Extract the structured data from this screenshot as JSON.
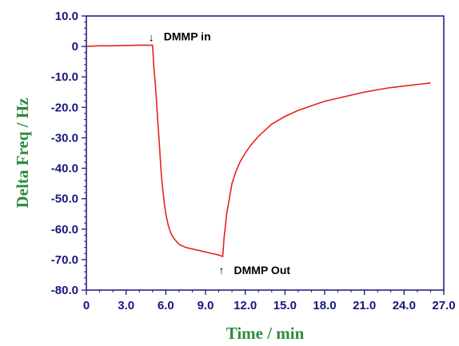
{
  "chart_data": {
    "type": "line",
    "title": "",
    "xlabel": "Time / min",
    "ylabel": "Delta Freq / Hz",
    "xlim": [
      0,
      27
    ],
    "ylim": [
      -80,
      10
    ],
    "x_ticks": [
      "0",
      "3.0",
      "6.0",
      "9.0",
      "12.0",
      "15.0",
      "18.0",
      "21.0",
      "24.0",
      "27.0"
    ],
    "y_ticks": [
      "10.0",
      "0",
      "-10.0",
      "-20.0",
      "-30.0",
      "-40.0",
      "-50.0",
      "-60.0",
      "-70.0",
      "-80.0"
    ],
    "grid": false,
    "series": [
      {
        "x": [
          0,
          1,
          2,
          3,
          4,
          5.0,
          5.05,
          5.1,
          5.2,
          5.3,
          5.4,
          5.5,
          5.6,
          5.7,
          5.8,
          5.9,
          6.0,
          6.2,
          6.4,
          6.6,
          6.8,
          7.0,
          7.5,
          8.0,
          8.5,
          9.0,
          9.5,
          10.0,
          10.2,
          10.3,
          10.35,
          10.4,
          10.5,
          10.6,
          10.8,
          11.0,
          11.3,
          11.6,
          12.0,
          12.5,
          13.0,
          13.5,
          14.0,
          15.0,
          16.0,
          17.0,
          18.0,
          19.0,
          20.0,
          21.0,
          22.0,
          23.0,
          24.0,
          25.0,
          26.0
        ],
        "y": [
          0,
          0.2,
          0.2,
          0.3,
          0.4,
          0.4,
          -3,
          -7,
          -12,
          -18,
          -25,
          -31,
          -38,
          -44,
          -48,
          -52,
          -55,
          -59,
          -61.5,
          -63,
          -64,
          -65,
          -66,
          -66.5,
          -67,
          -67.5,
          -68,
          -68.5,
          -68.8,
          -69,
          -66,
          -63,
          -59,
          -55,
          -50,
          -45,
          -41,
          -38,
          -35,
          -32,
          -29.5,
          -27.5,
          -25.5,
          -23,
          -21,
          -19.5,
          -18,
          -17,
          -16,
          -15,
          -14.2,
          -13.5,
          -13,
          -12.5,
          -12
        ]
      }
    ],
    "annotations": [
      {
        "text": "DMMP in",
        "arrow": "↓",
        "x": 5.0,
        "y": 0.4
      },
      {
        "text": "DMMP Out",
        "arrow": "↑",
        "x": 10.3,
        "y": -69
      }
    ],
    "colors": {
      "line": "#e8221b",
      "axis": "#17177f",
      "tick_label": "#17177f",
      "axis_title": "#2e8b3e"
    }
  }
}
